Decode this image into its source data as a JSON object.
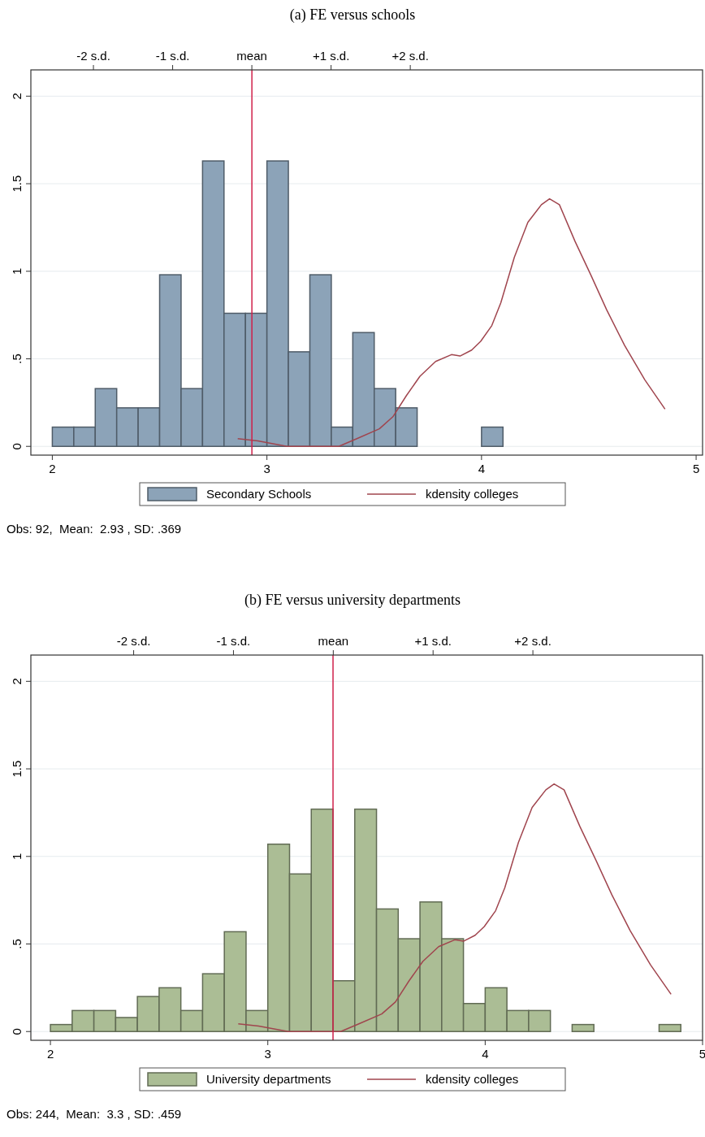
{
  "chart_data": [
    {
      "type": "histogram",
      "title": "(a)  FE versus schools",
      "xlim": [
        1.9,
        5.03
      ],
      "xticks": [
        2,
        3,
        4,
        5
      ],
      "ylim": [
        -0.05,
        2.15
      ],
      "yticks": [
        0,
        {
          "value": 0.5,
          "label": ".5"
        },
        1,
        1.5,
        2
      ],
      "x2lim": [
        -2.79,
        5.69
      ],
      "x2ticks": [
        {
          "value": -2,
          "label": "-2 s.d."
        },
        {
          "value": -1,
          "label": "-1 s.d."
        },
        {
          "value": 0,
          "label": "mean"
        },
        {
          "value": 1,
          "label": "+1 s.d."
        },
        {
          "value": 2,
          "label": "+2 s.d."
        }
      ],
      "grid": "y",
      "legend": "bottom",
      "bins": [
        2.0,
        2.1,
        2.2,
        2.3,
        2.4,
        2.5,
        2.6,
        2.7,
        2.8,
        2.9,
        3.0,
        3.1,
        3.2,
        3.3,
        3.4,
        3.5,
        3.6,
        3.7,
        3.8,
        3.9,
        4.0,
        4.1
      ],
      "series": [
        {
          "name": "Secondary Schools",
          "type": "histogram",
          "color": "#8ca3b8",
          "values": [
            0.11,
            0.11,
            0.33,
            0.22,
            0.22,
            0.98,
            0.33,
            1.63,
            0.76,
            0.76,
            1.63,
            0.54,
            0.98,
            0.11,
            0.65,
            0.33,
            0.22,
            0,
            0,
            0,
            0.11
          ]
        },
        {
          "name": "kdensity colleges",
          "type": "line",
          "color": "#a0454e",
          "x": [
            2.864,
            2.958,
            3.094,
            3.335,
            3.419,
            3.524,
            3.587,
            3.65,
            3.713,
            3.786,
            3.86,
            3.9,
            3.954,
            3.996,
            4.048,
            4.09,
            4.153,
            4.216,
            4.279,
            4.317,
            4.363,
            4.436,
            4.509,
            4.583,
            4.667,
            4.761,
            4.855
          ],
          "values": [
            0.044,
            0.031,
            0,
            0,
            0.044,
            0.1,
            0.169,
            0.29,
            0.4,
            0.485,
            0.524,
            0.516,
            0.55,
            0.6,
            0.69,
            0.82,
            1.08,
            1.28,
            1.38,
            1.414,
            1.38,
            1.17,
            0.98,
            0.78,
            0.576,
            0.38,
            0.213
          ]
        }
      ],
      "ref_lines": [
        {
          "axis": "x",
          "value": 2.93,
          "color": "#d0204a"
        }
      ],
      "annotations": [
        "Obs: 92,  Mean:  2.93 , SD: .369"
      ]
    },
    {
      "type": "histogram",
      "title": "(b)  FE versus university departments",
      "xlim": [
        1.91,
        5.0
      ],
      "xticks": [
        2,
        3,
        4,
        5
      ],
      "ylim": [
        -0.05,
        2.15
      ],
      "yticks": [
        0,
        {
          "value": 0.5,
          "label": ".5"
        },
        1,
        1.5,
        2
      ],
      "x2lim": [
        -3.03,
        3.7
      ],
      "x2ticks": [
        {
          "value": -2,
          "label": "-2 s.d."
        },
        {
          "value": -1,
          "label": "-1 s.d."
        },
        {
          "value": 0,
          "label": "mean"
        },
        {
          "value": 1,
          "label": "+1 s.d."
        },
        {
          "value": 2,
          "label": "+2 s.d."
        }
      ],
      "grid": "y",
      "legend": "bottom",
      "bins": [
        2.0,
        2.1,
        2.2,
        2.3,
        2.4,
        2.5,
        2.6,
        2.7,
        2.8,
        2.9,
        3.0,
        3.1,
        3.2,
        3.3,
        3.4,
        3.5,
        3.6,
        3.7,
        3.8,
        3.9,
        4.0,
        4.1,
        4.2,
        4.3,
        4.4,
        4.5,
        4.6,
        4.7,
        4.8,
        4.9
      ],
      "series": [
        {
          "name": "University departments",
          "type": "histogram",
          "color": "#abbd95",
          "values": [
            0.04,
            0.12,
            0.12,
            0.08,
            0.2,
            0.25,
            0.12,
            0.33,
            0.57,
            0.12,
            1.07,
            0.9,
            1.27,
            0.29,
            1.27,
            0.7,
            0.53,
            0.74,
            0.53,
            0.16,
            0.25,
            0.12,
            0.12,
            0,
            0.04,
            0,
            0,
            0,
            0.04
          ]
        },
        {
          "name": "kdensity colleges",
          "type": "line",
          "color": "#a0454e",
          "x": [
            2.864,
            2.958,
            3.094,
            3.335,
            3.419,
            3.524,
            3.587,
            3.65,
            3.713,
            3.786,
            3.86,
            3.9,
            3.954,
            3.996,
            4.048,
            4.09,
            4.153,
            4.216,
            4.279,
            4.317,
            4.363,
            4.436,
            4.509,
            4.583,
            4.667,
            4.761,
            4.855
          ],
          "values": [
            0.044,
            0.031,
            0,
            0,
            0.044,
            0.1,
            0.169,
            0.29,
            0.4,
            0.485,
            0.524,
            0.516,
            0.55,
            0.6,
            0.69,
            0.82,
            1.08,
            1.28,
            1.38,
            1.414,
            1.38,
            1.17,
            0.98,
            0.78,
            0.576,
            0.38,
            0.213
          ]
        }
      ],
      "ref_lines": [
        {
          "axis": "x",
          "value": 3.3,
          "color": "#d0204a"
        }
      ],
      "annotations": [
        "Obs: 244,  Mean:  3.3 , SD: .459"
      ]
    }
  ]
}
